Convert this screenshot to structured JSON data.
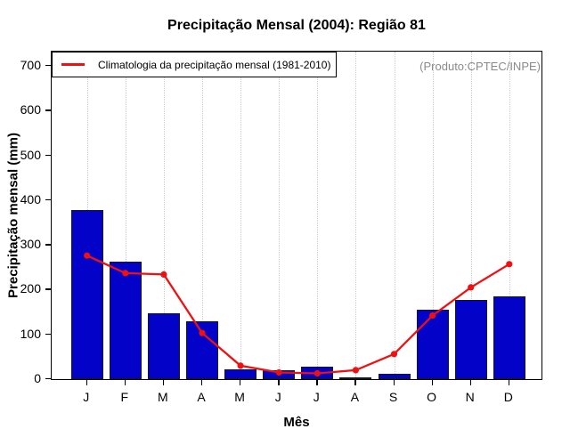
{
  "chart_data": {
    "type": "bar+line",
    "title": "Precipitação Mensal (2004): Região 81",
    "xlabel": "Mês",
    "ylabel": "Precipitação mensal (mm)",
    "categories": [
      "J",
      "F",
      "M",
      "A",
      "M",
      "J",
      "J",
      "A",
      "S",
      "O",
      "N",
      "D"
    ],
    "bars": {
      "values": [
        378,
        262,
        148,
        129,
        22,
        19,
        27,
        3,
        11,
        156,
        177,
        186
      ],
      "color": "#0202c8",
      "border_color": "#16161d"
    },
    "line": {
      "name": "Climatologia da precipitação mensal (1981-2010)",
      "values": [
        276,
        237,
        234,
        103,
        30,
        15,
        13,
        20,
        56,
        142,
        205,
        257
      ],
      "color": "#ee1111",
      "marker": "circle"
    },
    "ylim": [
      0,
      700
    ],
    "yticks": [
      0,
      100,
      200,
      300,
      400,
      500,
      600,
      700
    ],
    "grid": "vertical dotted lines at each month",
    "legend_position": "top-left",
    "annotation": "(Produto:CPTEC/INPE)",
    "annotation_color": "#8a8a8a",
    "grid_color": "#c9c9c9"
  }
}
